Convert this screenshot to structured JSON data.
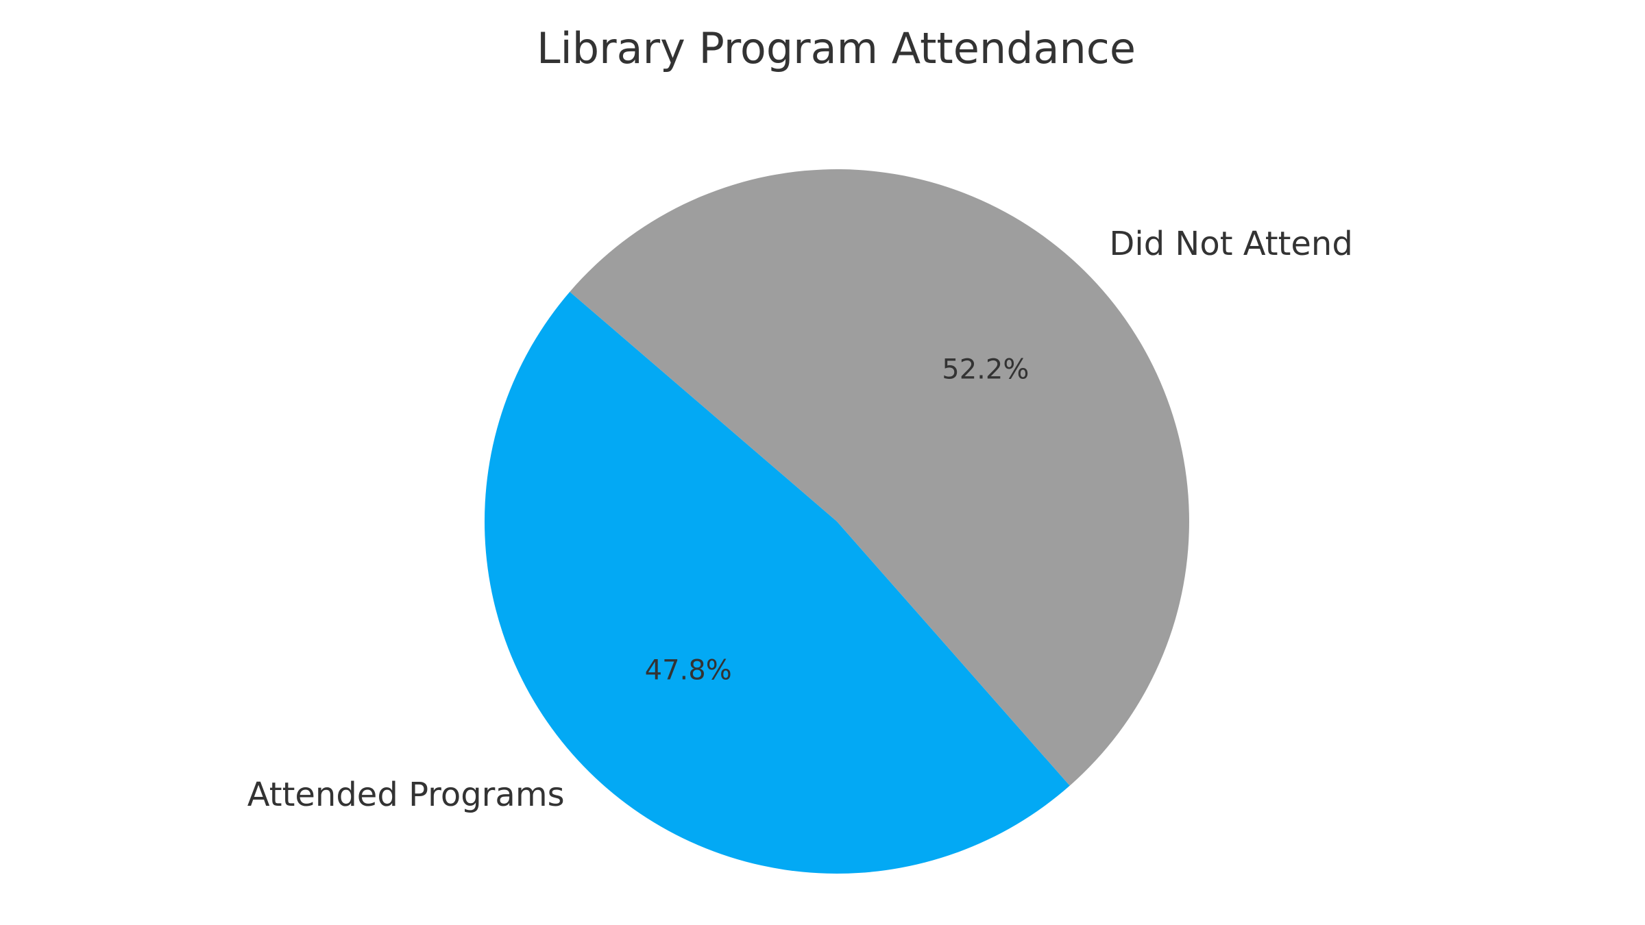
{
  "chart_data": {
    "type": "pie",
    "title": "Library Program Attendance",
    "slices": [
      {
        "label": "Attended Programs",
        "value": 47.8,
        "pct_label": "47.8%",
        "color": "#03A9F4"
      },
      {
        "label": "Did Not Attend",
        "value": 52.2,
        "pct_label": "52.2%",
        "color": "#9E9E9E"
      }
    ],
    "legend": "none"
  }
}
